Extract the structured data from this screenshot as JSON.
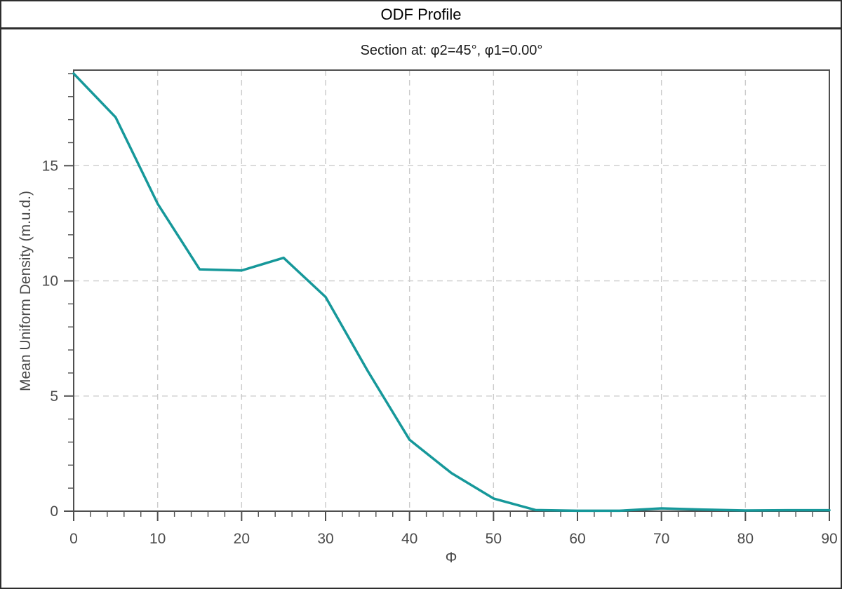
{
  "window": {
    "title": "ODF Profile"
  },
  "colors": {
    "line": "#16989a",
    "grid": "#cbcbcb",
    "axis": "#4f4f4f",
    "tick_label": "#4a4a4a",
    "border": "#2e2e2e"
  },
  "chart_data": {
    "type": "line",
    "title": "Section at: φ2=45°, φ1=0.00°",
    "xlabel": "Φ",
    "ylabel": "Mean Uniform Density (m.u.d.)",
    "x": [
      0,
      5,
      10,
      15,
      20,
      25,
      30,
      35,
      40,
      45,
      50,
      55,
      60,
      65,
      70,
      75,
      80,
      85,
      90
    ],
    "y": [
      19.0,
      17.1,
      13.35,
      10.5,
      10.45,
      11.0,
      9.3,
      6.1,
      3.1,
      1.65,
      0.55,
      0.05,
      0.02,
      0.02,
      0.12,
      0.07,
      0.03,
      0.04,
      0.04
    ],
    "xlim": [
      0,
      90
    ],
    "ylim": [
      0,
      19.15
    ],
    "x_major_ticks": [
      0,
      10,
      20,
      30,
      40,
      50,
      60,
      70,
      80,
      90
    ],
    "x_minor_step": 2,
    "y_major_ticks": [
      0,
      5,
      10,
      15
    ],
    "y_minor_step": 1,
    "y_minor_max": 19,
    "grid": true,
    "grid_style": "dashed",
    "legend": null
  }
}
